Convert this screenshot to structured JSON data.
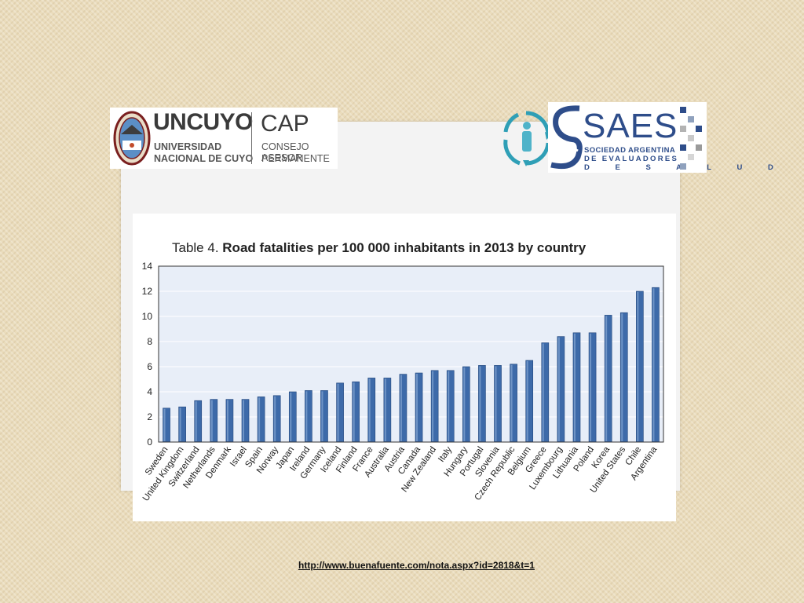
{
  "logos": {
    "left": {
      "title": "UNCUYO",
      "sub1": "UNIVERSIDAD",
      "sub2": "NACIONAL DE CUYO",
      "cap": "CAP",
      "cap_sub1": "CONSEJO ASESOR",
      "cap_sub2": "PERMANENTE"
    },
    "right": {
      "title": "SAES",
      "sub1": "SOCIEDAD ARGENTINA",
      "sub2": "DE EVALUADORES",
      "sub3": "D E S A L U D"
    }
  },
  "colors": {
    "bar": "#3d6aa9",
    "bar_highlight": "#6f94c6",
    "plot_bg": "#e8eef8",
    "gridline": "#ffffff",
    "brand_blue": "#2e4d8a"
  },
  "chart_data": {
    "type": "bar",
    "title_prefix": "Table 4.",
    "title": "Road fatalities per 100 000 inhabitants in 2013 by country",
    "ylim": [
      0,
      14
    ],
    "yticks": [
      0,
      2,
      4,
      6,
      8,
      10,
      12,
      14
    ],
    "grid": true,
    "categories": [
      "Sweden",
      "United Kingdom",
      "Switzerland",
      "Netherlands",
      "Denmark",
      "Israel",
      "Spain",
      "Norway",
      "Japan",
      "Ireland",
      "Germany",
      "Iceland",
      "Finland",
      "France",
      "Australia",
      "Austria",
      "Canada",
      "New Zealand",
      "Italy",
      "Hungary",
      "Portugal",
      "Slovenia",
      "Czech Republic",
      "Belgium",
      "Greece",
      "Luxembourg",
      "Lithuania",
      "Poland",
      "Korea",
      "United States",
      "Chile",
      "Argentina"
    ],
    "values": [
      2.7,
      2.8,
      3.3,
      3.4,
      3.4,
      3.4,
      3.6,
      3.7,
      4.0,
      4.1,
      4.1,
      4.7,
      4.8,
      5.1,
      5.1,
      5.4,
      5.5,
      5.7,
      5.7,
      6.0,
      6.1,
      6.1,
      6.2,
      6.5,
      7.9,
      8.4,
      8.7,
      8.7,
      10.1,
      10.3,
      12.0,
      12.3
    ]
  },
  "footer": {
    "link": "http://www.buenafuente.com/nota.aspx?id=2818&t=1"
  }
}
